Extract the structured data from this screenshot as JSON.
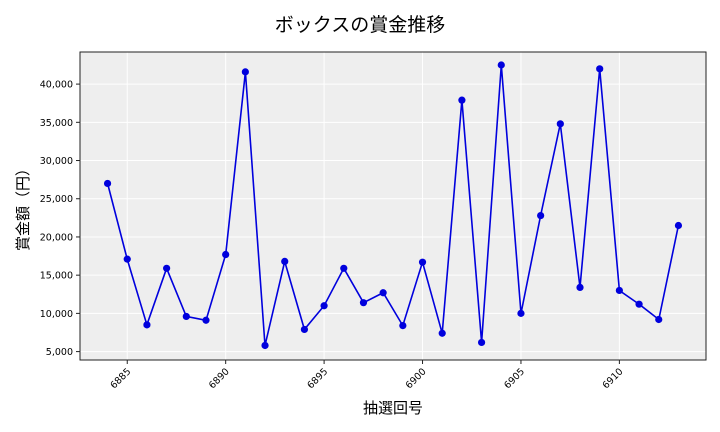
{
  "chart_data": {
    "type": "line",
    "title": "ボックスの賞金推移",
    "xlabel": "抽選回号",
    "ylabel": "賞金額（円）",
    "x": [
      6884,
      6885,
      6886,
      6887,
      6888,
      6889,
      6890,
      6891,
      6892,
      6893,
      6894,
      6895,
      6896,
      6897,
      6898,
      6899,
      6900,
      6901,
      6902,
      6903,
      6904,
      6905,
      6906,
      6907,
      6908,
      6909,
      6910,
      6911,
      6912,
      6913
    ],
    "series": [
      {
        "name": "ボックス",
        "color": "#0000dd",
        "values": [
          27000,
          17100,
          8500,
          15900,
          9600,
          9100,
          17700,
          41600,
          5800,
          16800,
          7900,
          11000,
          15900,
          11400,
          12700,
          8400,
          16700,
          7400,
          37900,
          6200,
          42500,
          10000,
          22800,
          34800,
          13400,
          42000,
          13000,
          11200,
          9200,
          21500
        ]
      }
    ],
    "xticks": [
      6885,
      6890,
      6895,
      6900,
      6905,
      6910
    ],
    "yticks": [
      5000,
      10000,
      15000,
      20000,
      25000,
      30000,
      35000,
      40000
    ],
    "ytick_labels": [
      "5,000",
      "10,000",
      "15,000",
      "20,000",
      "25,000",
      "30,000",
      "35,000",
      "40,000"
    ],
    "xlim": [
      6882.6,
      6914.4
    ],
    "ylim": [
      3900,
      44200
    ],
    "grid": true,
    "legend": null,
    "plot_background": "#eeeeee"
  }
}
